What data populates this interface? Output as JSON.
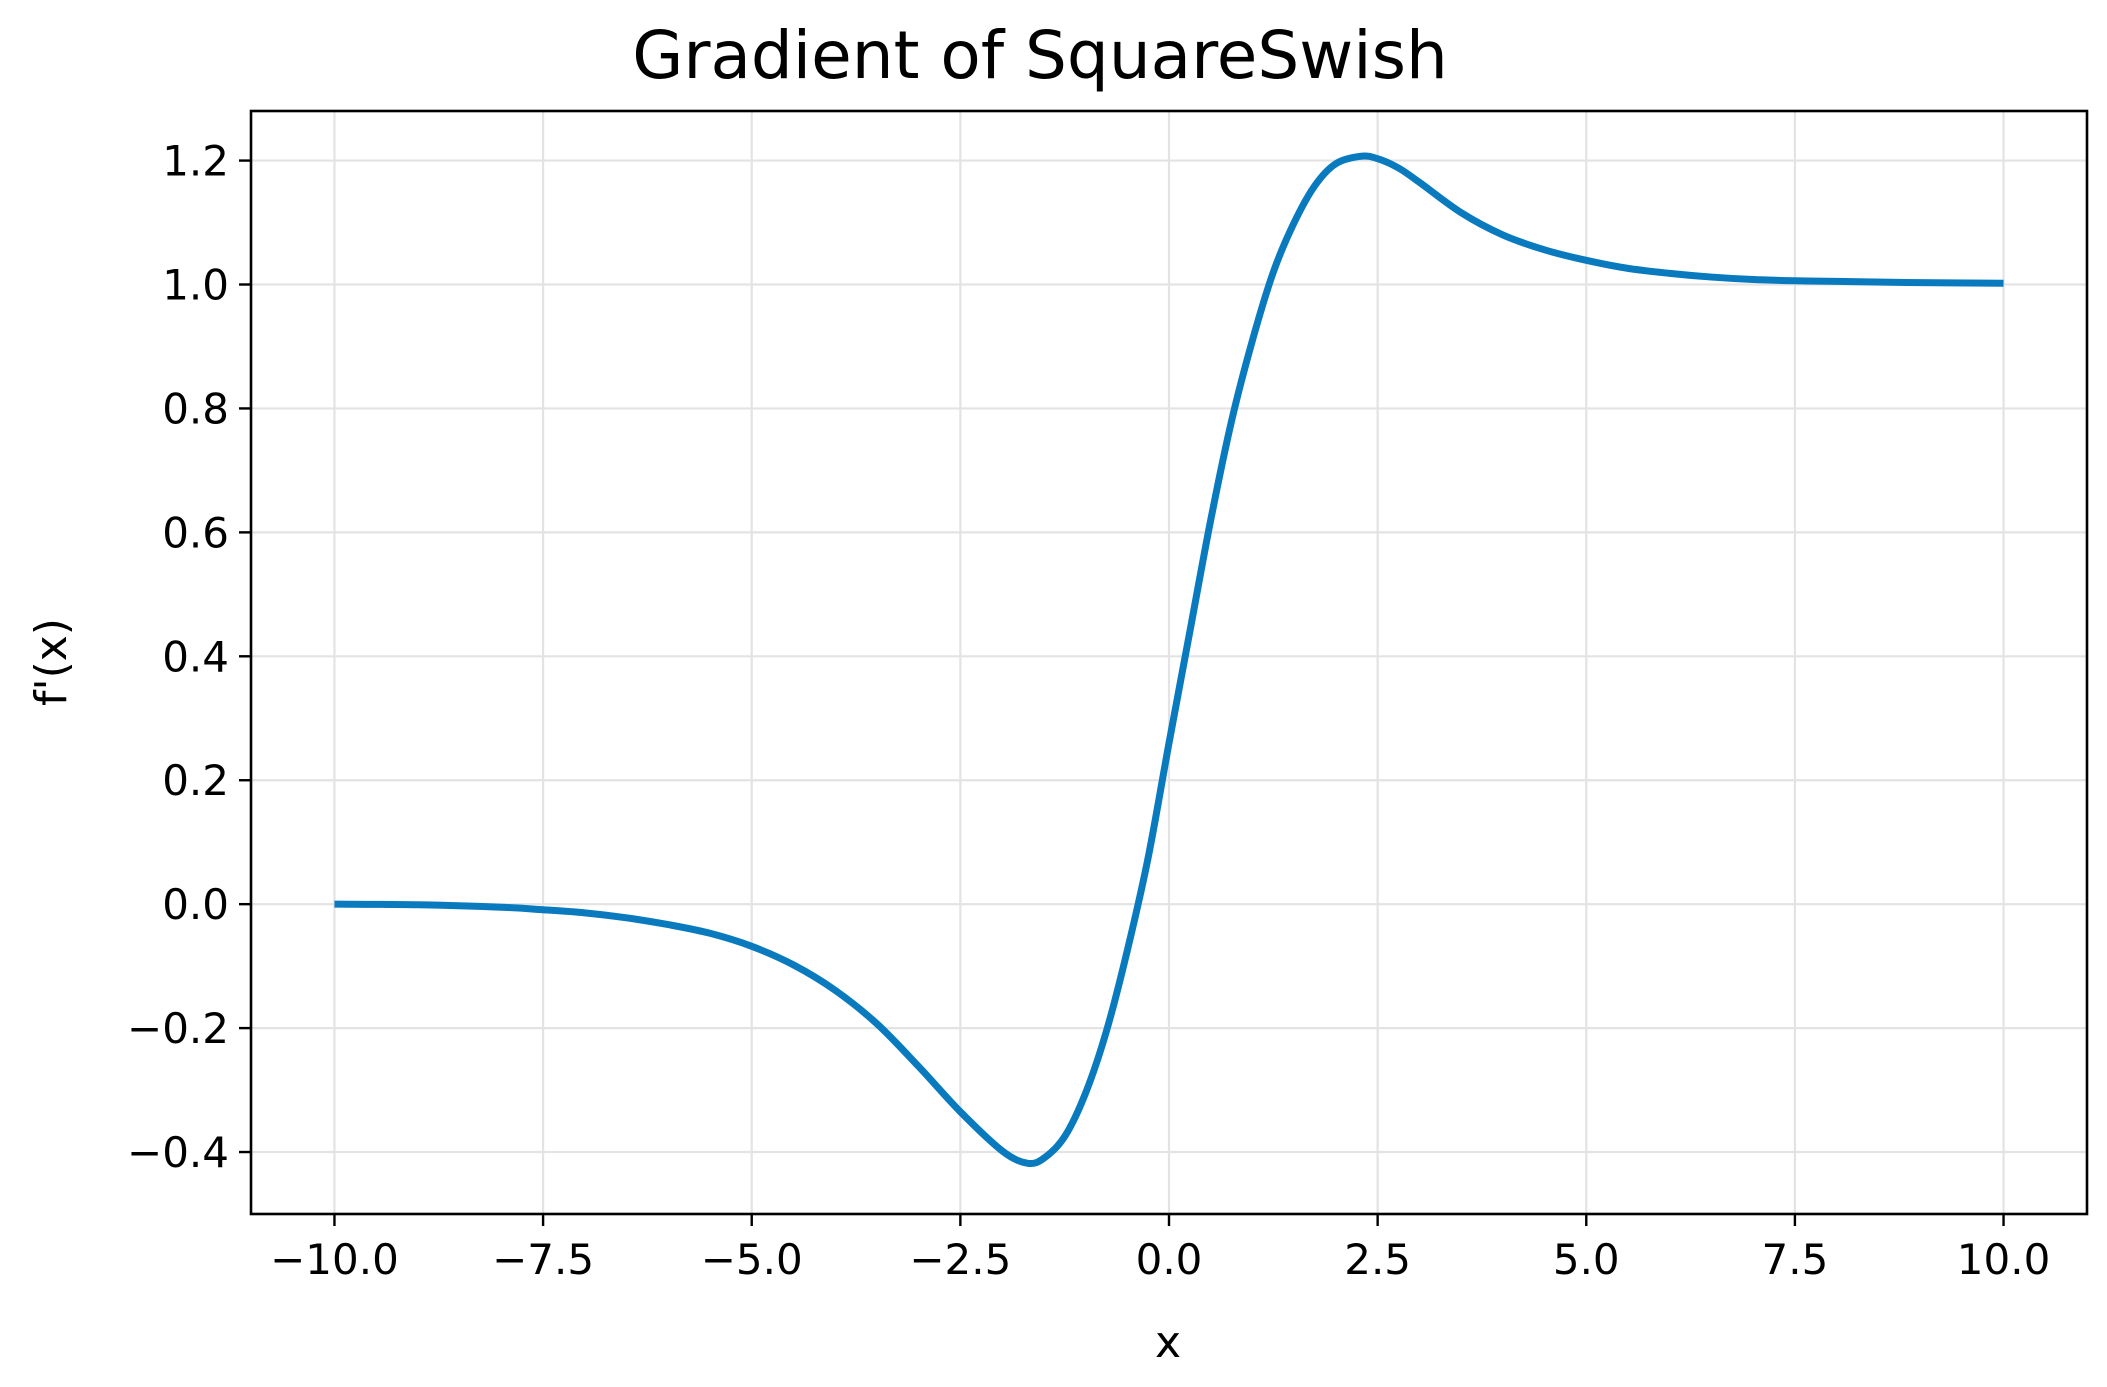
{
  "chart_data": {
    "type": "line",
    "title": "Gradient of SquareSwish",
    "xlabel": "x",
    "ylabel": "f'(x)",
    "xlim": [
      -11.0,
      11.0
    ],
    "ylim": [
      -0.5,
      1.28
    ],
    "grid": true,
    "x_ticks": [
      {
        "value": -10.0,
        "label": "−10.0"
      },
      {
        "value": -7.5,
        "label": "−7.5"
      },
      {
        "value": -5.0,
        "label": "−5.0"
      },
      {
        "value": -2.5,
        "label": "−2.5"
      },
      {
        "value": 0.0,
        "label": "0.0"
      },
      {
        "value": 2.5,
        "label": "2.5"
      },
      {
        "value": 5.0,
        "label": "5.0"
      },
      {
        "value": 7.5,
        "label": "7.5"
      },
      {
        "value": 10.0,
        "label": "10.0"
      }
    ],
    "y_ticks": [
      {
        "value": -0.4,
        "label": "−0.4"
      },
      {
        "value": -0.2,
        "label": "−0.2"
      },
      {
        "value": 0.0,
        "label": "0.0"
      },
      {
        "value": 0.2,
        "label": "0.2"
      },
      {
        "value": 0.4,
        "label": "0.4"
      },
      {
        "value": 0.6,
        "label": "0.6"
      },
      {
        "value": 0.8,
        "label": "0.8"
      },
      {
        "value": 1.0,
        "label": "1.0"
      },
      {
        "value": 1.2,
        "label": "1.2"
      }
    ],
    "series": [
      {
        "color": "#0a7abf",
        "x": [
          -10.0,
          -9.0,
          -8.0,
          -7.5,
          -7.0,
          -6.5,
          -6.0,
          -5.5,
          -5.0,
          -4.5,
          -4.0,
          -3.5,
          -3.0,
          -2.5,
          -2.0,
          -1.7,
          -1.5,
          -1.25,
          -1.0,
          -0.75,
          -0.5,
          -0.25,
          0.0,
          0.25,
          0.5,
          0.75,
          1.0,
          1.25,
          1.5,
          1.75,
          2.0,
          2.3,
          2.5,
          2.75,
          3.0,
          3.5,
          4.0,
          4.5,
          5.0,
          5.5,
          6.0,
          6.5,
          7.0,
          7.5,
          8.0,
          9.0,
          10.0
        ],
        "y": [
          0.0,
          -0.001,
          -0.005,
          -0.009,
          -0.014,
          -0.022,
          -0.033,
          -0.047,
          -0.068,
          -0.098,
          -0.139,
          -0.193,
          -0.262,
          -0.335,
          -0.398,
          -0.418,
          -0.41,
          -0.375,
          -0.305,
          -0.205,
          -0.075,
          0.075,
          0.26,
          0.44,
          0.62,
          0.78,
          0.91,
          1.02,
          1.1,
          1.16,
          1.195,
          1.207,
          1.203,
          1.188,
          1.165,
          1.116,
          1.08,
          1.056,
          1.039,
          1.026,
          1.018,
          1.012,
          1.008,
          1.006,
          1.005,
          1.003,
          1.002
        ]
      }
    ]
  }
}
